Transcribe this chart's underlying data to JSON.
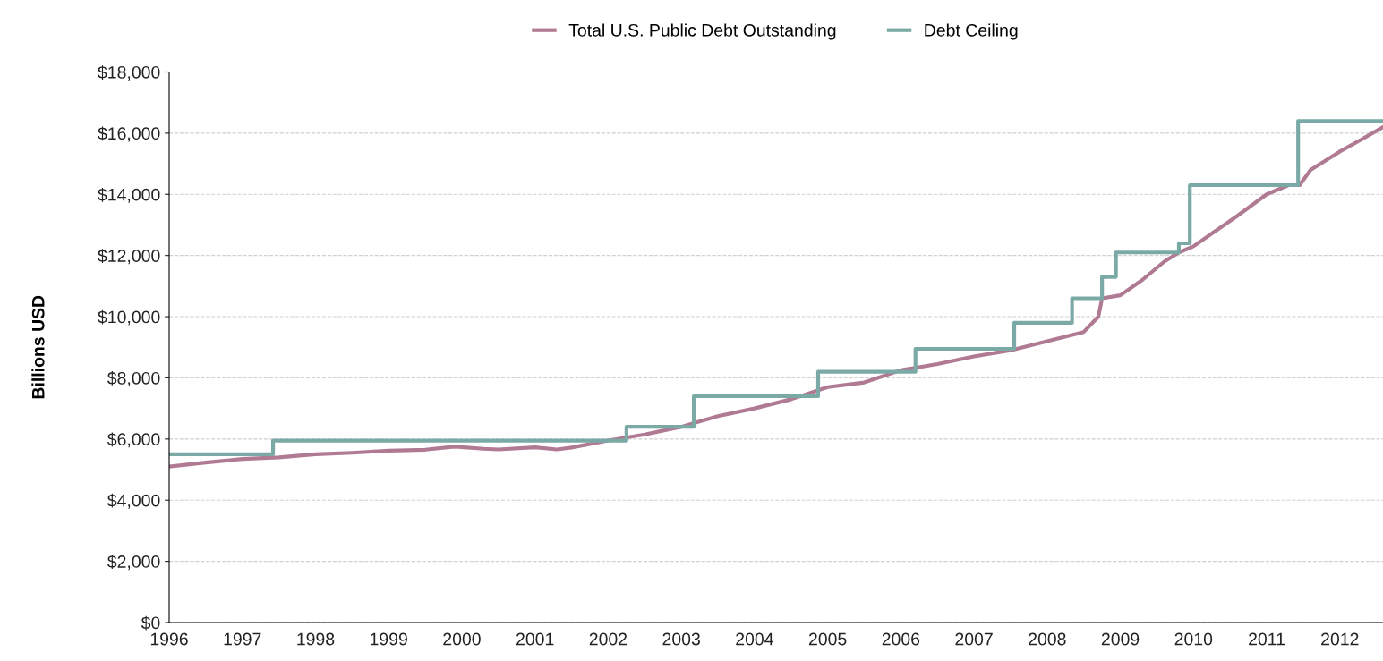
{
  "chart_data": {
    "type": "step",
    "ylabel": "Billions USD",
    "xlim": [
      1996,
      2012.59
    ],
    "xticks": [
      1996,
      1997,
      1998,
      1999,
      2000,
      2001,
      2002,
      2003,
      2004,
      2005,
      2006,
      2007,
      2008,
      2009,
      2010,
      2011,
      2012
    ],
    "ylim": [
      0,
      18000
    ],
    "yticks": [
      {
        "value": 0,
        "label": "$0"
      },
      {
        "value": 2000,
        "label": "$2,000"
      },
      {
        "value": 4000,
        "label": "$4,000"
      },
      {
        "value": 6000,
        "label": "$6,000"
      },
      {
        "value": 8000,
        "label": "$8,000"
      },
      {
        "value": 10000,
        "label": "$10,000"
      },
      {
        "value": 12000,
        "label": "$12,000"
      },
      {
        "value": 14000,
        "label": "$14,000"
      },
      {
        "value": 16000,
        "label": "$16,000"
      },
      {
        "value": 18000,
        "label": "$18,000"
      }
    ],
    "grid": "y",
    "legend": "top",
    "line_style": "solid",
    "series": [
      {
        "name": "Total U.S. Public Debt Outstanding",
        "type": "line",
        "color": "#b07a93",
        "x": [
          1996.0,
          1996.5,
          1997.0,
          1997.5,
          1998.0,
          1998.5,
          1999.0,
          1999.5,
          1999.9,
          2000.3,
          2000.5,
          2001.0,
          2001.3,
          2001.5,
          2002.0,
          2002.5,
          2003.0,
          2003.5,
          2004.0,
          2004.5,
          2005.0,
          2005.5,
          2006.0,
          2006.5,
          2007.0,
          2007.5,
          2008.0,
          2008.5,
          2008.7,
          2008.75,
          2009.0,
          2009.3,
          2009.6,
          2009.8,
          2010.0,
          2010.3,
          2010.6,
          2011.0,
          2011.3,
          2011.45,
          2011.6,
          2012.0,
          2012.3,
          2012.59
        ],
        "values": [
          5100,
          5230,
          5350,
          5400,
          5500,
          5550,
          5620,
          5650,
          5750,
          5680,
          5660,
          5730,
          5660,
          5720,
          5950,
          6150,
          6400,
          6750,
          7000,
          7300,
          7700,
          7850,
          8250,
          8450,
          8700,
          8900,
          9200,
          9500,
          10000,
          10600,
          10700,
          11200,
          11800,
          12100,
          12300,
          12800,
          13300,
          14000,
          14300,
          14300,
          14800,
          15400,
          15800,
          16200
        ]
      },
      {
        "name": "Debt Ceiling",
        "color": "#7aa9a6",
        "x": [
          1996.0,
          1997.42,
          2002.25,
          2003.17,
          2004.87,
          2006.2,
          2007.55,
          2008.34,
          2008.75,
          2008.94,
          2009.8,
          2009.95,
          2011.43,
          2012.59
        ],
        "values": [
          5500,
          5950,
          6400,
          7400,
          8200,
          8950,
          9800,
          10600,
          11300,
          12100,
          12400,
          14300,
          16400,
          16400
        ]
      }
    ]
  }
}
